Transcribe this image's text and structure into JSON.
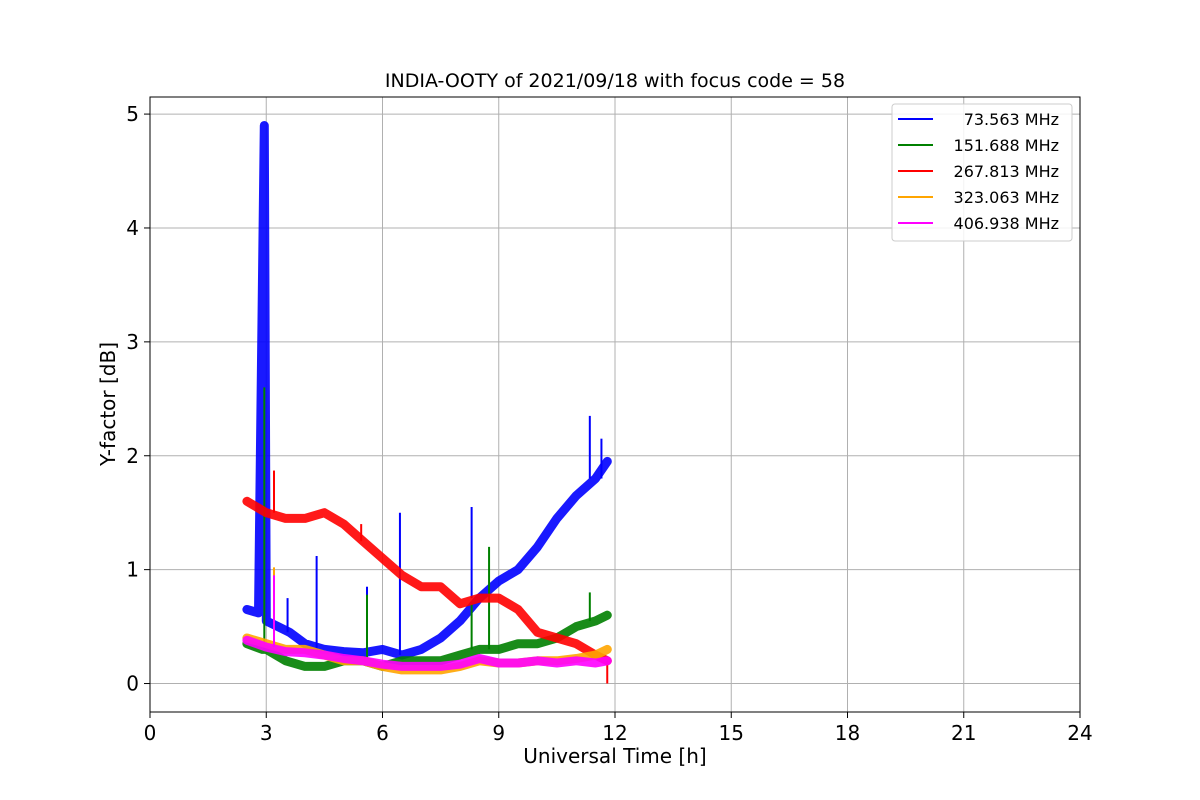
{
  "chart_data": {
    "type": "line",
    "title": "INDIA-OOTY of 2021/09/18 with focus code = 58",
    "xlabel": "Universal Time [h]",
    "ylabel": "Y-factor [dB]",
    "xlim": [
      0,
      24
    ],
    "ylim": [
      -0.25,
      5.15
    ],
    "xticks": [
      0,
      3,
      6,
      9,
      12,
      15,
      18,
      21,
      24
    ],
    "yticks": [
      0,
      1,
      2,
      3,
      4,
      5
    ],
    "grid": true,
    "legend_position": "top-right",
    "series": [
      {
        "name": "73.563 MHz",
        "color": "#0000ff",
        "x": [
          2.5,
          2.8,
          2.95,
          3.0,
          3.3,
          3.6,
          4.0,
          4.5,
          5.0,
          5.5,
          6.0,
          6.5,
          7.0,
          7.5,
          8.0,
          8.5,
          9.0,
          9.5,
          10.0,
          10.5,
          11.0,
          11.5,
          11.8
        ],
        "y": [
          0.65,
          0.62,
          4.9,
          0.55,
          0.5,
          0.45,
          0.35,
          0.3,
          0.28,
          0.27,
          0.3,
          0.25,
          0.3,
          0.4,
          0.55,
          0.75,
          0.9,
          1.0,
          1.2,
          1.45,
          1.65,
          1.8,
          1.95
        ],
        "spikes": [
          [
            2.95,
            4.9
          ],
          [
            3.55,
            0.75
          ],
          [
            4.3,
            1.12
          ],
          [
            5.6,
            0.85
          ],
          [
            6.45,
            1.5
          ],
          [
            8.3,
            1.55
          ],
          [
            11.35,
            2.35
          ],
          [
            11.65,
            2.15
          ]
        ]
      },
      {
        "name": "151.688 MHz",
        "color": "#008000",
        "x": [
          2.5,
          2.9,
          3.0,
          3.5,
          4.0,
          4.5,
          5.0,
          5.5,
          6.0,
          6.5,
          7.0,
          7.5,
          8.0,
          8.5,
          9.0,
          9.5,
          10.0,
          10.5,
          11.0,
          11.5,
          11.8
        ],
        "y": [
          0.35,
          0.3,
          0.3,
          0.2,
          0.15,
          0.15,
          0.2,
          0.2,
          0.15,
          0.2,
          0.2,
          0.2,
          0.25,
          0.3,
          0.3,
          0.35,
          0.35,
          0.4,
          0.5,
          0.55,
          0.6
        ],
        "spikes": [
          [
            2.95,
            2.6
          ],
          [
            5.6,
            0.78
          ],
          [
            8.3,
            0.7
          ],
          [
            8.75,
            1.2
          ],
          [
            11.35,
            0.8
          ]
        ]
      },
      {
        "name": "267.813 MHz",
        "color": "#ff0000",
        "x": [
          2.5,
          3.0,
          3.5,
          4.0,
          4.5,
          5.0,
          5.5,
          6.0,
          6.5,
          7.0,
          7.5,
          8.0,
          8.5,
          9.0,
          9.5,
          10.0,
          10.5,
          11.0,
          11.5,
          11.8
        ],
        "y": [
          1.6,
          1.5,
          1.45,
          1.45,
          1.5,
          1.4,
          1.25,
          1.1,
          0.95,
          0.85,
          0.85,
          0.7,
          0.75,
          0.75,
          0.65,
          0.45,
          0.4,
          0.35,
          0.25,
          0.2
        ],
        "spikes": [
          [
            3.2,
            1.87
          ],
          [
            5.45,
            1.4
          ],
          [
            11.8,
            0.0
          ]
        ]
      },
      {
        "name": "323.063 MHz",
        "color": "#ffa500",
        "x": [
          2.5,
          3.0,
          3.5,
          4.0,
          4.5,
          5.0,
          5.5,
          6.0,
          6.5,
          7.0,
          7.5,
          8.0,
          8.5,
          9.0,
          9.5,
          10.0,
          10.5,
          11.0,
          11.5,
          11.8
        ],
        "y": [
          0.4,
          0.35,
          0.3,
          0.3,
          0.25,
          0.2,
          0.2,
          0.15,
          0.12,
          0.12,
          0.12,
          0.15,
          0.2,
          0.18,
          0.18,
          0.2,
          0.2,
          0.22,
          0.25,
          0.3
        ],
        "spikes": [
          [
            3.2,
            1.02
          ]
        ]
      },
      {
        "name": "406.938 MHz",
        "color": "#ff00ff",
        "x": [
          2.5,
          3.0,
          3.5,
          4.0,
          4.5,
          5.0,
          5.5,
          6.0,
          6.5,
          7.0,
          7.5,
          8.0,
          8.5,
          9.0,
          9.5,
          10.0,
          10.5,
          11.0,
          11.5,
          11.8
        ],
        "y": [
          0.38,
          0.32,
          0.28,
          0.27,
          0.25,
          0.22,
          0.2,
          0.17,
          0.15,
          0.15,
          0.15,
          0.17,
          0.22,
          0.18,
          0.18,
          0.2,
          0.18,
          0.2,
          0.18,
          0.2
        ],
        "spikes": [
          [
            3.2,
            0.95
          ]
        ]
      }
    ]
  }
}
